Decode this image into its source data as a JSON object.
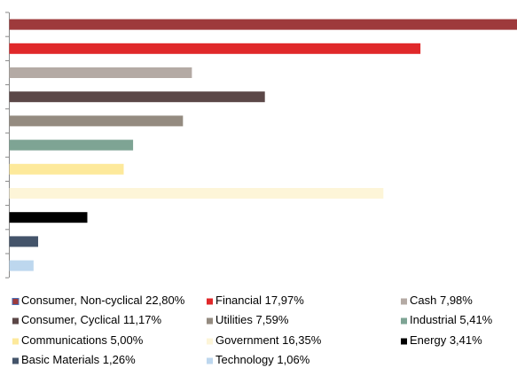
{
  "chart_data": {
    "type": "bar",
    "orientation": "horizontal",
    "categories": [
      "Consumer, Non-cyclical",
      "Financial",
      "Cash",
      "Consumer, Cyclical",
      "Utilities",
      "Industrial",
      "Communications",
      "Government",
      "Energy",
      "Basic Materials",
      "Technology"
    ],
    "values": [
      22.8,
      17.97,
      7.98,
      11.17,
      7.59,
      5.41,
      5.0,
      16.35,
      3.41,
      1.26,
      1.06
    ],
    "value_labels": [
      "22,80%",
      "17,97%",
      "7,98%",
      "11,17%",
      "7,59%",
      "5,41%",
      "5,00%",
      "16,35%",
      "3,41%",
      "1,26%",
      "1,06%"
    ],
    "colors": [
      "#9e3a3c",
      "#e0282a",
      "#b4aaa4",
      "#5b4747",
      "#948b80",
      "#7ea494",
      "#fde99b",
      "#fdf5d8",
      "#000000",
      "#44546a",
      "#bdd7ee"
    ],
    "legend": "bottom"
  }
}
